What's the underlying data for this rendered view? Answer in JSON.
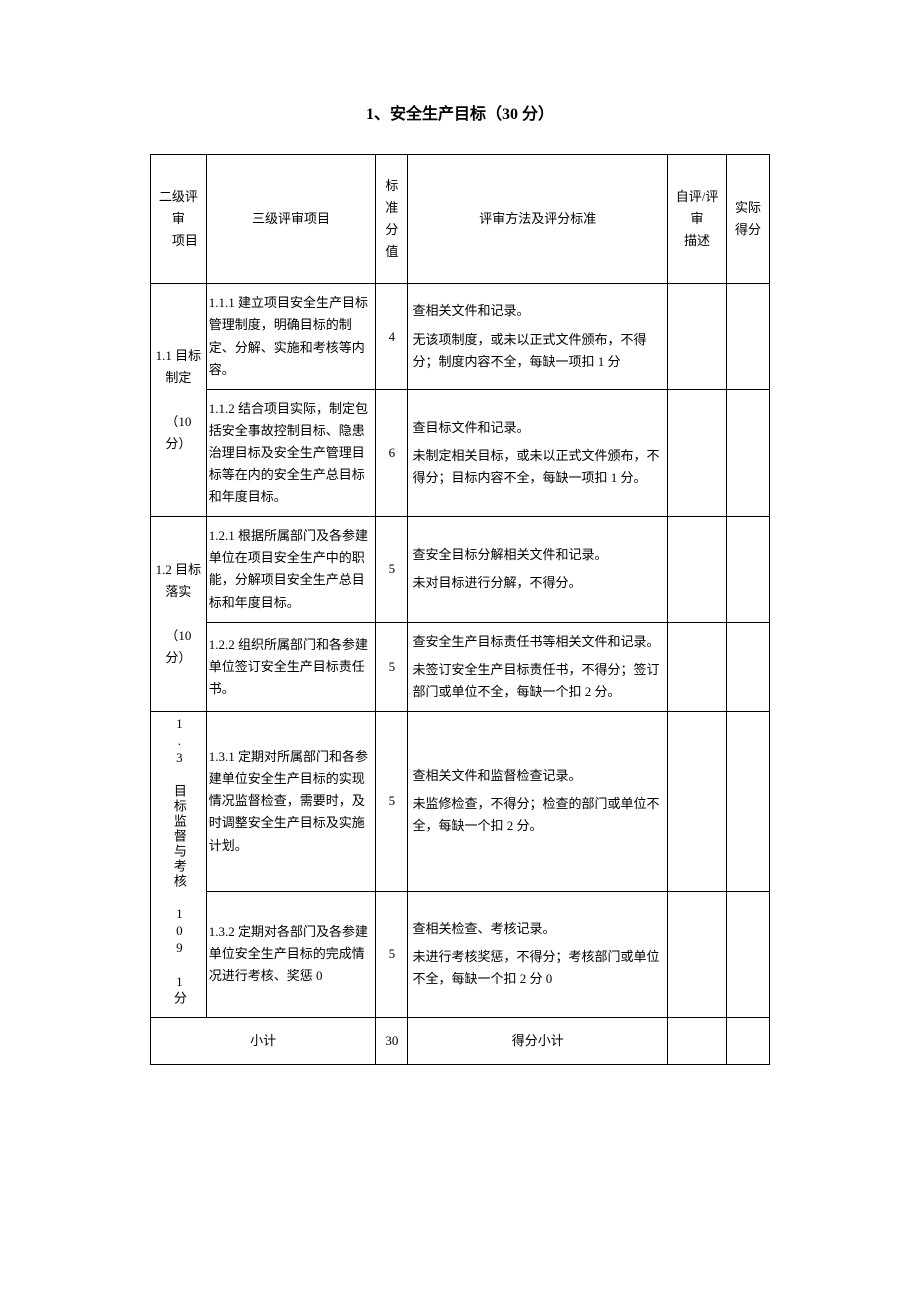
{
  "title": "1、安全生产目标（30 分）",
  "headers": {
    "col1": "二级评审\n项目",
    "col2": "三级评审项目",
    "col3": "标准分值",
    "col4": "评审方法及评分标准",
    "col5": "自评/评审描述",
    "col6": "实际得分"
  },
  "sections": [
    {
      "level2": "1.1 目标制定\n（10分）",
      "rows": [
        {
          "level3": "1.1.1 建立项目安全生产目标管理制度，明确目标的制定、分解、实施和考核等内容。",
          "score": "4",
          "method_p1": "查相关文件和记录。",
          "method_p2": "无该项制度，或未以正式文件颁布，不得分；制度内容不全，每缺一项扣 1 分"
        },
        {
          "level3": "1.1.2 结合项目实际，制定包括安全事故控制目标、隐患治理目标及安全生产管理目标等在内的安全生产总目标和年度目标。",
          "score": "6",
          "method_p1": "查目标文件和记录。",
          "method_p2": "未制定相关目标，或未以正式文件颁布，不得分；目标内容不全，每缺一项扣 1 分。"
        }
      ]
    },
    {
      "level2": "1.2 目标落实\n（10分）",
      "rows": [
        {
          "level3": "1.2.1 根据所属部门及各参建单位在项目安全生产中的职能，分解项目安全生产总目标和年度目标。",
          "score": "5",
          "method_p1": "查安全目标分解相关文件和记录。",
          "method_p2": "未对目标进行分解，不得分。"
        },
        {
          "level3": "1.2.2 组织所属部门和各参建单位签订安全生产目标责任书。",
          "score": "5",
          "method_p1": "查安全生产目标责任书等相关文件和记录。",
          "method_p2": "未签订安全生产目标责任书，不得分；签订部门或单位不全，每缺一个扣 2 分。"
        }
      ]
    },
    {
      "level2_vertical": "1.3 目标监督与考核 109 1分",
      "rows": [
        {
          "level3": "1.3.1 定期对所属部门和各参建单位安全生产目标的实现情况监督检查，需要时，及时调整安全生产目标及实施计划。",
          "score": "5",
          "method_p1": "查相关文件和监督检查记录。",
          "method_p2": "未监修检查，不得分；检查的部门或单位不全，每缺一个扣 2 分。"
        },
        {
          "level3": "1.3.2 定期对各部门及各参建单位安全生产目标的完成情况进行考核、奖惩\n0",
          "score": "5",
          "method_p1": "查相关检查、考核记录。",
          "method_p2": "未进行考核奖惩，不得分；考核部门或单位不全，每缺一个扣 2 分 0"
        }
      ]
    }
  ],
  "subtotal": {
    "label": "小计",
    "total_score": "30",
    "score_label": "得分小计"
  }
}
